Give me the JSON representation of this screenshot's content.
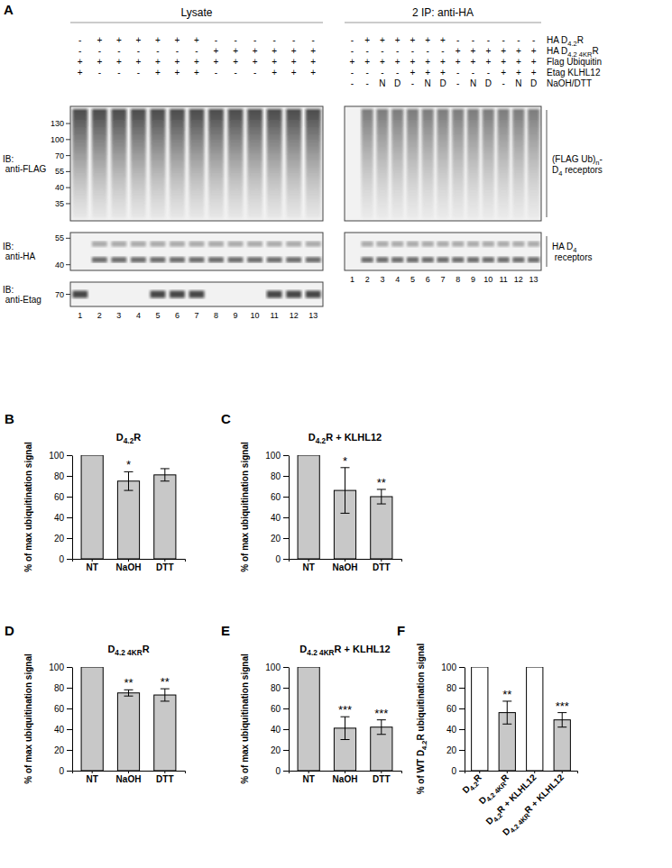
{
  "panel_a": {
    "panel": "A",
    "row_labels": [
      "HA D4.2R",
      "HA D4.2 4KRR",
      "Flag Ubiquitin",
      "Etag KLHL12",
      "NaOH/DTT"
    ],
    "sections": [
      {
        "title": "Lysate",
        "conditions": [
          [
            "-",
            "+",
            "+",
            "+",
            "+",
            "+",
            "+",
            "-",
            "-",
            "-",
            "-",
            "-",
            "-"
          ],
          [
            "-",
            "-",
            "-",
            "-",
            "-",
            "-",
            "-",
            "+",
            "+",
            "+",
            "+",
            "+",
            "+"
          ],
          [
            "+",
            "+",
            "+",
            "+",
            "+",
            "+",
            "+",
            "+",
            "+",
            "+",
            "+",
            "+",
            "+"
          ],
          [
            "+",
            "-",
            "-",
            "-",
            "+",
            "+",
            "+",
            "-",
            "-",
            "-",
            "+",
            "+",
            "+"
          ]
        ]
      },
      {
        "title": "2 IP: anti-HA",
        "conditions": [
          [
            "-",
            "+",
            "+",
            "+",
            "+",
            "+",
            "+",
            "-",
            "-",
            "-",
            "-",
            "-",
            "-"
          ],
          [
            "-",
            "-",
            "-",
            "-",
            "-",
            "-",
            "-",
            "+",
            "+",
            "+",
            "+",
            "+",
            "+"
          ],
          [
            "+",
            "+",
            "+",
            "+",
            "+",
            "+",
            "+",
            "+",
            "+",
            "+",
            "+",
            "+",
            "+"
          ],
          [
            "-",
            "-",
            "-",
            "-",
            "+",
            "+",
            "+",
            "-",
            "-",
            "-",
            "+",
            "+",
            "+"
          ],
          [
            "-",
            "-",
            "N",
            "D",
            "-",
            "N",
            "D",
            "-",
            "N",
            "D",
            "-",
            "N",
            "D"
          ]
        ]
      }
    ],
    "blots": [
      {
        "label": "IB: anti-FLAG",
        "markers": [
          130,
          100,
          70,
          55,
          40,
          35
        ]
      },
      {
        "label": "IB: anti-HA",
        "markers": [
          55,
          40
        ]
      },
      {
        "label": "IB: anti-Etag",
        "markers": [
          70
        ]
      }
    ],
    "lanes": [
      1,
      2,
      3,
      4,
      5,
      6,
      7,
      8,
      9,
      10,
      11,
      12,
      13
    ],
    "side_labels": [
      "(FLAG Ub)n-D4 receptors",
      "HA D4 receptors"
    ]
  },
  "chart_data": [
    {
      "panel": "B",
      "type": "bar",
      "title": "D4.2R",
      "categories": [
        "NT",
        "NaOH",
        "DTT"
      ],
      "values": [
        100,
        75,
        81
      ],
      "errors": [
        null,
        9,
        6
      ],
      "annotations": [
        {
          "category": "NaOH",
          "text": "*"
        }
      ],
      "y_label": "% of max ubiquitination signal",
      "ylim": [
        0,
        100
      ],
      "yticks": [
        0,
        20,
        40,
        60,
        80,
        100
      ],
      "color": "#c8c8c8"
    },
    {
      "panel": "C",
      "type": "bar",
      "title": "D4.2R + KLHL12",
      "categories": [
        "NT",
        "NaOH",
        "DTT"
      ],
      "values": [
        100,
        66,
        60
      ],
      "errors": [
        null,
        22,
        7
      ],
      "annotations": [
        {
          "category": "NaOH",
          "text": "*"
        },
        {
          "category": "DTT",
          "text": "**"
        }
      ],
      "y_label": "% of max ubiquitination signal",
      "ylim": [
        0,
        100
      ],
      "yticks": [
        0,
        20,
        40,
        60,
        80,
        100
      ],
      "color": "#c8c8c8"
    },
    {
      "panel": "D",
      "type": "bar",
      "title": "D4.2 4KRR",
      "categories": [
        "NT",
        "NaOH",
        "DTT"
      ],
      "values": [
        100,
        75,
        73
      ],
      "errors": [
        null,
        3,
        6
      ],
      "annotations": [
        {
          "category": "NaOH",
          "text": "**"
        },
        {
          "category": "DTT",
          "text": "**"
        }
      ],
      "y_label": "% of max ubiquitination signal",
      "ylim": [
        0,
        100
      ],
      "yticks": [
        0,
        20,
        40,
        60,
        80,
        100
      ],
      "color": "#c8c8c8"
    },
    {
      "panel": "E",
      "type": "bar",
      "title": "D4.2 4KRR + KLHL12",
      "categories": [
        "NT",
        "NaOH",
        "DTT"
      ],
      "values": [
        100,
        41,
        42
      ],
      "errors": [
        null,
        11,
        7
      ],
      "annotations": [
        {
          "category": "NaOH",
          "text": "***"
        },
        {
          "category": "DTT",
          "text": "***"
        }
      ],
      "y_label": "% of max ubiquitination signal",
      "ylim": [
        0,
        100
      ],
      "yticks": [
        0,
        20,
        40,
        60,
        80,
        100
      ],
      "color": "#c8c8c8"
    },
    {
      "panel": "F",
      "type": "bar",
      "categories": [
        "D4.2R",
        "D4.2 4KRR",
        "D4.2R + KLHL12",
        "D4.2 4KRR + KLHL12"
      ],
      "values": [
        100,
        56,
        100,
        49
      ],
      "errors": [
        null,
        11,
        null,
        7
      ],
      "annotations": [
        {
          "category": "D4.2 4KRR",
          "text": "**"
        },
        {
          "category": "D4.2 4KRR + KLHL12",
          "text": "***"
        }
      ],
      "y_label": "% of WT D4.2R ubiquitination signal",
      "ylim": [
        0,
        100
      ],
      "yticks": [
        0,
        20,
        40,
        60,
        80,
        100
      ],
      "colors": [
        "#ffffff",
        "#c8c8c8",
        "#ffffff",
        "#c8c8c8"
      ]
    }
  ]
}
